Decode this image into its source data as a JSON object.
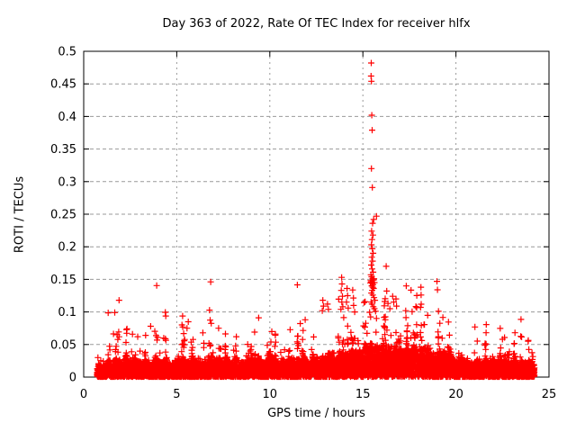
{
  "chart_data": {
    "type": "scatter",
    "title": "Day 363 of 2022, Rate Of TEC Index for receiver hlfx",
    "xlabel": "GPS time / hours",
    "ylabel": "ROTI / TECUs",
    "xlim": [
      0,
      25
    ],
    "ylim": [
      0,
      0.5
    ],
    "xticks": [
      "0",
      "5",
      "10",
      "15",
      "20",
      "25"
    ],
    "yticks": [
      "0",
      "0.05",
      "0.1",
      "0.15",
      "0.2",
      "0.25",
      "0.3",
      "0.35",
      "0.4",
      "0.45",
      "0.5"
    ],
    "grid": true,
    "legend_position": "none",
    "marker": {
      "glyph": "plus",
      "color": "#ff0000",
      "size": 7,
      "stroke_width": 1.2
    },
    "series_name": "ROTI",
    "data_span_hours": [
      0.72,
      24.22
    ],
    "dense_band": {
      "description": "Near-solid band of ROTI samples 0 to ~0.05 TECu across the whole day with spiky excursions; quiet 1-12 h and 20-24 h (band top ~0.03, spikes to ~0.09), elevated 12-20 h (band top ~0.05, spikes to ~0.15), strong disturbance spike column near 15.5 h.",
      "points_approx": 8500,
      "seed": 363,
      "envelope_hours": [
        0.72,
        1.5,
        2.5,
        3.5,
        4.5,
        5.5,
        6.5,
        7.5,
        8.5,
        9.5,
        10.5,
        11.5,
        12.5,
        13.5,
        14.0,
        14.5,
        15.0,
        15.5,
        16.0,
        16.5,
        17.0,
        17.5,
        18.0,
        18.5,
        19.0,
        19.5,
        20.0,
        20.5,
        21.0,
        22.0,
        23.0,
        24.22
      ],
      "envelope_tops": [
        0.018,
        0.028,
        0.029,
        0.028,
        0.03,
        0.032,
        0.03,
        0.033,
        0.029,
        0.033,
        0.032,
        0.031,
        0.037,
        0.044,
        0.048,
        0.046,
        0.05,
        0.058,
        0.054,
        0.051,
        0.049,
        0.051,
        0.047,
        0.049,
        0.045,
        0.043,
        0.04,
        0.034,
        0.032,
        0.029,
        0.028,
        0.026
      ]
    },
    "peak_points": [
      [
        15.45,
        0.482
      ],
      [
        15.44,
        0.462
      ],
      [
        15.46,
        0.454
      ],
      [
        15.48,
        0.402
      ],
      [
        15.5,
        0.379
      ],
      [
        15.46,
        0.32
      ],
      [
        15.51,
        0.291
      ],
      [
        15.73,
        0.247
      ],
      [
        15.58,
        0.242
      ],
      [
        15.52,
        0.236
      ],
      [
        15.47,
        0.224
      ],
      [
        15.54,
        0.218
      ],
      [
        15.49,
        0.211
      ],
      [
        15.46,
        0.203
      ],
      [
        15.51,
        0.197
      ],
      [
        15.55,
        0.19
      ],
      [
        15.48,
        0.184
      ],
      [
        15.52,
        0.178
      ],
      [
        15.45,
        0.172
      ],
      [
        15.5,
        0.166
      ],
      [
        15.55,
        0.161
      ],
      [
        15.43,
        0.157
      ],
      [
        15.47,
        0.154
      ],
      [
        15.52,
        0.151
      ],
      [
        15.57,
        0.149
      ],
      [
        15.45,
        0.146
      ],
      [
        15.5,
        0.144
      ],
      [
        15.55,
        0.142
      ],
      [
        15.48,
        0.14
      ],
      [
        15.53,
        0.138
      ],
      [
        15.6,
        0.151
      ],
      [
        15.62,
        0.145
      ],
      [
        15.42,
        0.148
      ],
      [
        15.58,
        0.136
      ],
      [
        15.5,
        0.133
      ],
      [
        15.46,
        0.129
      ],
      [
        15.53,
        0.126
      ],
      [
        15.6,
        0.122
      ],
      [
        15.65,
        0.118
      ],
      [
        15.44,
        0.115
      ],
      [
        15.49,
        0.112
      ],
      [
        15.56,
        0.108
      ],
      [
        15.62,
        0.105
      ],
      [
        15.68,
        0.101
      ],
      [
        13.86,
        0.153
      ],
      [
        13.88,
        0.143
      ],
      [
        13.84,
        0.133
      ],
      [
        13.9,
        0.124
      ],
      [
        13.87,
        0.115
      ],
      [
        13.92,
        0.108
      ],
      [
        13.82,
        0.104
      ],
      [
        14.15,
        0.136
      ],
      [
        14.18,
        0.125
      ],
      [
        14.12,
        0.115
      ],
      [
        14.21,
        0.106
      ],
      [
        14.5,
        0.11
      ],
      [
        14.56,
        0.1
      ],
      [
        12.85,
        0.118
      ],
      [
        12.88,
        0.109
      ],
      [
        12.82,
        0.102
      ],
      [
        13.1,
        0.112
      ],
      [
        13.15,
        0.104
      ],
      [
        16.25,
        0.17
      ],
      [
        16.28,
        0.132
      ],
      [
        16.35,
        0.113
      ],
      [
        16.45,
        0.105
      ],
      [
        16.6,
        0.124
      ],
      [
        16.66,
        0.115
      ],
      [
        16.78,
        0.12
      ],
      [
        16.81,
        0.109
      ],
      [
        17.3,
        0.102
      ],
      [
        18.12,
        0.138
      ],
      [
        18.13,
        0.126
      ],
      [
        18.1,
        0.107
      ],
      [
        18.98,
        0.147
      ],
      [
        19.01,
        0.134
      ],
      [
        19.06,
        0.101
      ],
      [
        9.4,
        0.091
      ],
      [
        11.9,
        0.088
      ],
      [
        5.62,
        0.085
      ],
      [
        5.55,
        0.075
      ],
      [
        3.6,
        0.078
      ],
      [
        7.25,
        0.075
      ],
      [
        21.02,
        0.077
      ],
      [
        1.8,
        0.065
      ],
      [
        23.88,
        0.055
      ],
      [
        10.3,
        0.066
      ],
      [
        2.9,
        0.062
      ],
      [
        4.3,
        0.06
      ],
      [
        6.4,
        0.068
      ],
      [
        8.2,
        0.062
      ],
      [
        22.5,
        0.058
      ]
    ]
  },
  "colors": {
    "marker": "#ff0000",
    "grid": "#999999",
    "axis": "#000000",
    "background": "#ffffff",
    "text": "#000000"
  }
}
